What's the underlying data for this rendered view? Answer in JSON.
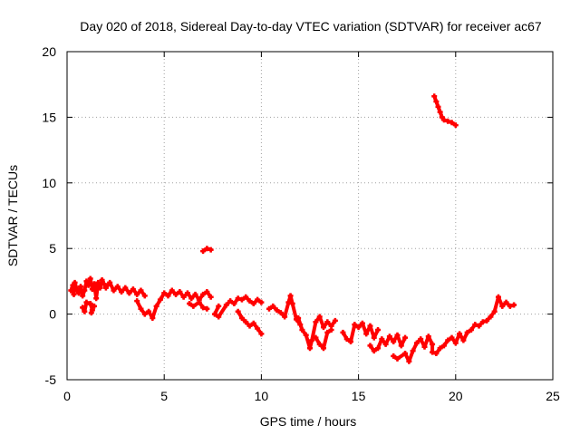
{
  "chart_data": {
    "type": "scatter",
    "title": "Day 020 of 2018, Sidereal Day-to-day VTEC variation (SDTVAR) for receiver ac67",
    "xlabel": "GPS time / hours",
    "ylabel": "SDTVAR / TECUs",
    "xlim": [
      0,
      25
    ],
    "ylim": [
      -5,
      20
    ],
    "xticks": [
      "0",
      "5",
      "10",
      "15",
      "20",
      "25"
    ],
    "yticks": [
      "-5",
      "0",
      "5",
      "10",
      "15",
      "20"
    ],
    "grid": true,
    "marker": "plus",
    "colors": {
      "series": "#ff0000",
      "grid": "#a0a0a0",
      "axis": "#000000"
    },
    "series": [
      {
        "name": "SDTVAR",
        "points": [
          [
            0.2,
            1.8
          ],
          [
            0.3,
            2.2
          ],
          [
            0.35,
            1.5
          ],
          [
            0.4,
            2.4
          ],
          [
            0.5,
            1.9
          ],
          [
            0.6,
            1.6
          ],
          [
            0.7,
            2.1
          ],
          [
            0.8,
            1.4
          ],
          [
            0.9,
            1.8
          ],
          [
            1.0,
            2.5
          ],
          [
            1.1,
            2.2
          ],
          [
            1.2,
            2.7
          ],
          [
            1.3,
            1.9
          ],
          [
            1.4,
            2.3
          ],
          [
            1.5,
            1.2
          ],
          [
            1.6,
            2.4
          ],
          [
            1.7,
            2.0
          ],
          [
            1.8,
            2.6
          ],
          [
            1.9,
            2.3
          ],
          [
            2.0,
            2.0
          ],
          [
            2.2,
            2.4
          ],
          [
            2.4,
            1.8
          ],
          [
            2.6,
            2.1
          ],
          [
            2.8,
            1.7
          ],
          [
            3.0,
            2.0
          ],
          [
            3.2,
            1.6
          ],
          [
            3.4,
            1.9
          ],
          [
            3.6,
            1.5
          ],
          [
            3.8,
            1.8
          ],
          [
            4.0,
            1.4
          ],
          [
            1.2,
            0.8
          ],
          [
            1.3,
            0.3
          ],
          [
            1.25,
            0.1
          ],
          [
            0.8,
            0.5
          ],
          [
            0.9,
            0.2
          ],
          [
            1.0,
            0.9
          ],
          [
            1.4,
            0.6
          ],
          [
            3.6,
            1.0
          ],
          [
            3.8,
            0.4
          ],
          [
            4.0,
            0.0
          ],
          [
            4.2,
            0.2
          ],
          [
            4.4,
            -0.3
          ],
          [
            4.6,
            0.6
          ],
          [
            4.8,
            1.1
          ],
          [
            5.0,
            1.6
          ],
          [
            5.2,
            1.4
          ],
          [
            5.4,
            1.8
          ],
          [
            5.6,
            1.5
          ],
          [
            5.8,
            1.7
          ],
          [
            6.0,
            1.3
          ],
          [
            6.2,
            1.6
          ],
          [
            6.4,
            1.2
          ],
          [
            6.6,
            1.5
          ],
          [
            6.8,
            1.1
          ],
          [
            7.0,
            1.5
          ],
          [
            7.2,
            1.7
          ],
          [
            7.4,
            1.3
          ],
          [
            6.3,
            0.8
          ],
          [
            6.5,
            0.6
          ],
          [
            6.8,
            0.9
          ],
          [
            7.0,
            0.5
          ],
          [
            7.2,
            0.4
          ],
          [
            7.8,
            0.6
          ],
          [
            7.6,
            0.0
          ],
          [
            7.8,
            -0.2
          ],
          [
            8.2,
            0.7
          ],
          [
            8.4,
            1.0
          ],
          [
            8.6,
            0.8
          ],
          [
            8.8,
            1.2
          ],
          [
            9.0,
            1.1
          ],
          [
            9.2,
            1.3
          ],
          [
            9.4,
            1.0
          ],
          [
            9.6,
            0.8
          ],
          [
            9.8,
            1.1
          ],
          [
            10.0,
            0.9
          ],
          [
            8.8,
            0.2
          ],
          [
            9.0,
            -0.3
          ],
          [
            9.2,
            -0.6
          ],
          [
            9.4,
            -0.9
          ],
          [
            9.6,
            -0.7
          ],
          [
            9.8,
            -1.1
          ],
          [
            10.0,
            -1.5
          ],
          [
            10.4,
            0.4
          ],
          [
            10.6,
            0.6
          ],
          [
            10.8,
            0.3
          ],
          [
            11.0,
            0.1
          ],
          [
            11.2,
            -0.2
          ],
          [
            11.4,
            0.9
          ],
          [
            11.5,
            1.4
          ],
          [
            11.6,
            0.8
          ],
          [
            11.8,
            -0.4
          ],
          [
            12.0,
            -0.8
          ],
          [
            11.9,
            -0.3
          ],
          [
            12.1,
            -1.2
          ],
          [
            12.3,
            -1.6
          ],
          [
            12.5,
            -2.6
          ],
          [
            12.6,
            -2.0
          ],
          [
            12.8,
            -0.6
          ],
          [
            13.0,
            -0.2
          ],
          [
            13.2,
            -1.0
          ],
          [
            13.4,
            -0.6
          ],
          [
            13.6,
            -0.9
          ],
          [
            13.8,
            -0.5
          ],
          [
            12.8,
            -1.8
          ],
          [
            13.0,
            -2.3
          ],
          [
            13.2,
            -2.6
          ],
          [
            13.4,
            -1.4
          ],
          [
            13.6,
            -1.2
          ],
          [
            14.2,
            -1.4
          ],
          [
            14.4,
            -1.9
          ],
          [
            14.6,
            -2.1
          ],
          [
            14.8,
            -0.8
          ],
          [
            15.0,
            -1.0
          ],
          [
            15.2,
            -0.7
          ],
          [
            15.4,
            -1.5
          ],
          [
            15.6,
            -0.9
          ],
          [
            15.8,
            -1.8
          ],
          [
            16.0,
            -1.2
          ],
          [
            15.6,
            -2.4
          ],
          [
            15.8,
            -2.8
          ],
          [
            16.0,
            -2.6
          ],
          [
            16.2,
            -1.9
          ],
          [
            16.4,
            -2.3
          ],
          [
            16.6,
            -1.7
          ],
          [
            16.8,
            -2.1
          ],
          [
            17.0,
            -1.6
          ],
          [
            17.2,
            -2.4
          ],
          [
            17.4,
            -1.8
          ],
          [
            16.8,
            -3.2
          ],
          [
            17.0,
            -3.4
          ],
          [
            17.4,
            -3.0
          ],
          [
            17.6,
            -3.6
          ],
          [
            17.8,
            -2.8
          ],
          [
            18.0,
            -2.2
          ],
          [
            18.2,
            -1.9
          ],
          [
            18.4,
            -2.5
          ],
          [
            18.6,
            -1.7
          ],
          [
            18.8,
            -2.3
          ],
          [
            18.8,
            -2.9
          ],
          [
            19.0,
            -3.0
          ],
          [
            19.2,
            -2.6
          ],
          [
            19.4,
            -2.4
          ],
          [
            19.6,
            -2.0
          ],
          [
            19.8,
            -1.8
          ],
          [
            20.0,
            -2.2
          ],
          [
            20.2,
            -1.5
          ],
          [
            20.4,
            -2.0
          ],
          [
            20.6,
            -1.4
          ],
          [
            20.8,
            -1.2
          ],
          [
            21.0,
            -0.8
          ],
          [
            21.2,
            -0.9
          ],
          [
            21.4,
            -0.6
          ],
          [
            21.6,
            -0.5
          ],
          [
            21.8,
            -0.2
          ],
          [
            22.0,
            0.2
          ],
          [
            22.2,
            1.3
          ],
          [
            22.4,
            0.6
          ],
          [
            22.6,
            0.9
          ],
          [
            22.8,
            0.6
          ],
          [
            23.0,
            0.7
          ],
          [
            7.0,
            4.8
          ],
          [
            7.2,
            5.0
          ],
          [
            7.4,
            4.9
          ],
          [
            18.9,
            16.6
          ],
          [
            19.0,
            16.2
          ],
          [
            19.1,
            15.8
          ],
          [
            19.2,
            15.4
          ],
          [
            19.3,
            15.0
          ],
          [
            19.4,
            14.8
          ],
          [
            19.6,
            14.7
          ],
          [
            19.8,
            14.6
          ],
          [
            20.0,
            14.4
          ]
        ]
      }
    ]
  }
}
